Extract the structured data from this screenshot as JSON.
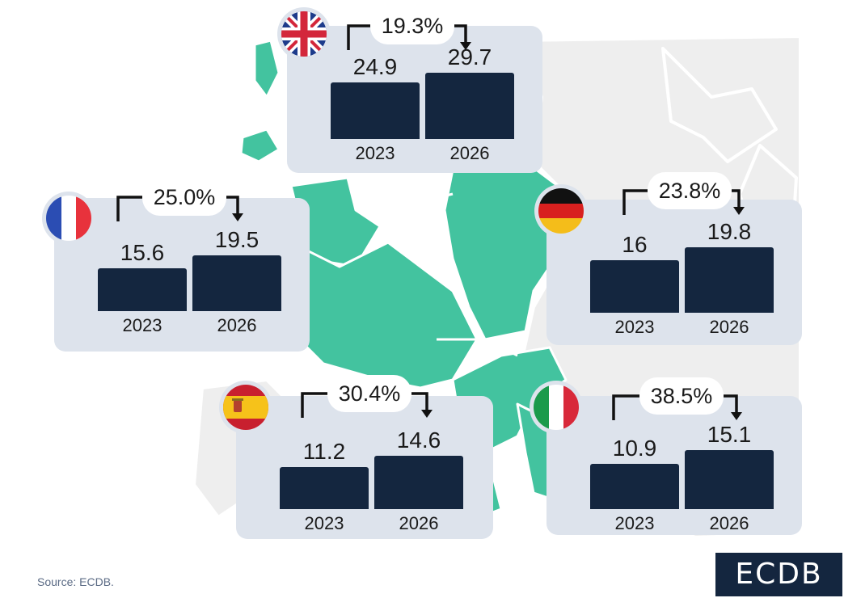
{
  "chart_data": {
    "type": "bar",
    "categories": [
      "2023",
      "2026"
    ],
    "panels": [
      {
        "flag": "uk-flag-icon",
        "values": [
          24.9,
          29.7
        ],
        "value_labels": [
          "24.9",
          "29.7"
        ],
        "growth": "19.3%"
      },
      {
        "flag": "france-flag-icon",
        "values": [
          15.6,
          19.5
        ],
        "value_labels": [
          "15.6",
          "19.5"
        ],
        "growth": "25.0%"
      },
      {
        "flag": "germany-flag-icon",
        "values": [
          16,
          19.8
        ],
        "value_labels": [
          "16",
          "19.8"
        ],
        "growth": "23.8%"
      },
      {
        "flag": "spain-flag-icon",
        "values": [
          11.2,
          14.6
        ],
        "value_labels": [
          "11.2",
          "14.6"
        ],
        "growth": "30.4%"
      },
      {
        "flag": "italy-flag-icon",
        "values": [
          10.9,
          15.1
        ],
        "value_labels": [
          "10.9",
          "15.1"
        ],
        "growth": "38.5%"
      }
    ]
  },
  "source": "Source: ECDB.",
  "logo": "ECDB",
  "colors": {
    "bar": "#14263f",
    "card": "#dde3ec",
    "map_highlight": "#43c39f",
    "map_base": "#eeeeee"
  }
}
